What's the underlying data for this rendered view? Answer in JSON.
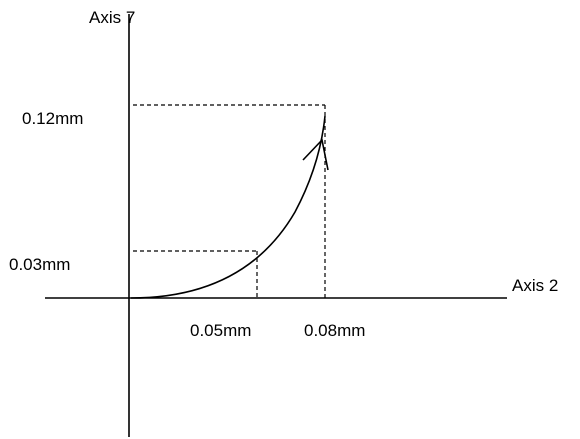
{
  "diagram": {
    "y_axis_label": "Axis 7",
    "x_axis_label": "Axis 2",
    "x_point_label": "0.05mm",
    "y_point_label": "0.03mm",
    "x_end_label": "0.08mm",
    "y_end_label": "0.12mm"
  },
  "colors": {
    "line": "#000000",
    "background": "#ffffff"
  }
}
